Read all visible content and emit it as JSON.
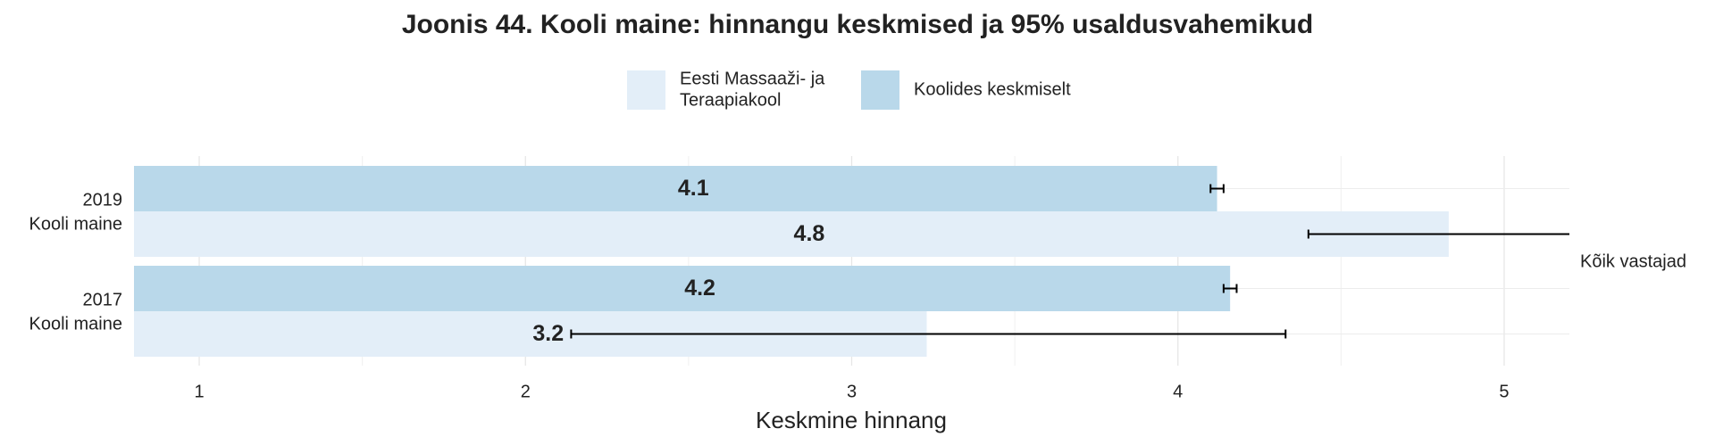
{
  "chart_data": {
    "type": "bar",
    "orientation": "horizontal",
    "title": "Joonis 44. Kooli maine: hinnangu keskmised ja 95% usaldusvahemikud",
    "x_label": "Keskmine hinnang",
    "facet_label": "Kõik vastajad",
    "categories": [
      [
        "2019",
        "Kooli maine"
      ],
      [
        "2017",
        "Kooli maine"
      ]
    ],
    "series": [
      {
        "name": [
          "Eesti Massaaži- ja",
          "Teraapiakool"
        ],
        "color": "#e3eef8",
        "values": [
          4.83,
          3.23
        ],
        "value_labels": [
          "4.8",
          "3.2"
        ],
        "ci": [
          [
            4.4,
            5.25
          ],
          [
            2.14,
            4.33
          ]
        ]
      },
      {
        "name": [
          "Koolides keskmiselt"
        ],
        "color": "#b9d8ea",
        "values": [
          4.12,
          4.16
        ],
        "value_labels": [
          "4.1",
          "4.2"
        ],
        "ci": [
          [
            4.1,
            4.14
          ],
          [
            4.14,
            4.18
          ]
        ]
      }
    ],
    "xlim": [
      0.8,
      5.2
    ],
    "xticks": [
      1,
      2,
      3,
      4,
      5
    ],
    "xminor": [
      1.5,
      2.5,
      3.5,
      4.5
    ],
    "grid": true
  }
}
